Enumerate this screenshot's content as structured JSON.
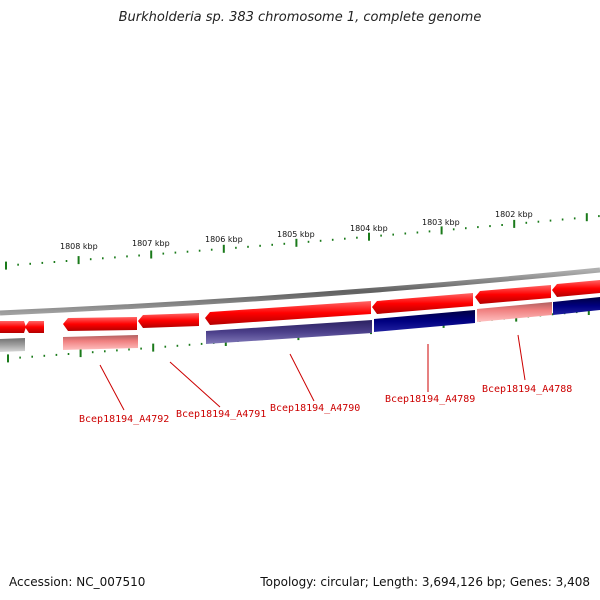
{
  "title": "Burkholderia sp. 383 chromosome 1, complete genome",
  "footer": {
    "accession": "Accession: NC_007510",
    "stats": "Topology: circular; Length: 3,694,126 bp; Genes: 3,408"
  },
  "scale_labels": [
    "1808 kbp",
    "1807 kbp",
    "1806 kbp",
    "1805 kbp",
    "1804 kbp",
    "1803 kbp",
    "1802 kbp"
  ],
  "gene_labels": [
    "Bcep18194_A4792",
    "Bcep18194_A4791",
    "Bcep18194_A4790",
    "Bcep18194_A4789",
    "Bcep18194_A4788"
  ],
  "colors": {
    "forward_gene": "#ff0000",
    "cds_light": "#f08080",
    "cds_dark": "#000080",
    "cds_mid": "#4b3f8a",
    "backbone": "#808080",
    "ticks": "#1a7a1a",
    "label": "#cc0000"
  }
}
